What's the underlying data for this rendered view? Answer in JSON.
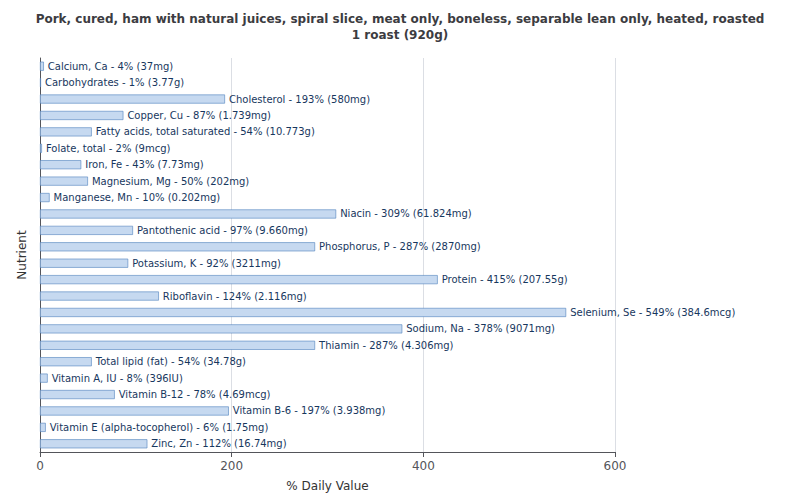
{
  "chart_data": {
    "type": "bar",
    "orientation": "horizontal",
    "title": "Pork, cured, ham with natural juices, spiral slice, meat only, boneless, separable lean only, heated, roasted\n1 roast (920g)",
    "xlabel": "% Daily Value",
    "ylabel": "Nutrient",
    "categories": [
      "Calcium, Ca - 4% (37mg)",
      "Carbohydrates - 1% (3.77g)",
      "Cholesterol - 193% (580mg)",
      "Copper, Cu - 87% (1.739mg)",
      "Fatty acids, total saturated - 54% (10.773g)",
      "Folate, total - 2% (9mcg)",
      "Iron, Fe - 43% (7.73mg)",
      "Magnesium, Mg - 50% (202mg)",
      "Manganese, Mn - 10% (0.202mg)",
      "Niacin - 309% (61.824mg)",
      "Pantothenic acid - 97% (9.660mg)",
      "Phosphorus, P - 287% (2870mg)",
      "Potassium, K - 92% (3211mg)",
      "Protein - 415% (207.55g)",
      "Riboflavin - 124% (2.116mg)",
      "Selenium, Se - 549% (384.6mcg)",
      "Sodium, Na - 378% (9071mg)",
      "Thiamin - 287% (4.306mg)",
      "Total lipid (fat) - 54% (34.78g)",
      "Vitamin A, IU - 8% (396IU)",
      "Vitamin B-12 - 78% (4.69mcg)",
      "Vitamin B-6 - 197% (3.938mg)",
      "Vitamin E (alpha-tocopherol) - 6% (1.75mg)",
      "Zinc, Zn - 112% (16.74mg)"
    ],
    "values": [
      4,
      1,
      193,
      87,
      54,
      2,
      43,
      50,
      10,
      309,
      97,
      287,
      92,
      415,
      124,
      549,
      378,
      287,
      54,
      8,
      78,
      197,
      6,
      112
    ],
    "color": "#c6d9f0",
    "xlim": [
      0,
      600
    ],
    "xticks": [
      0,
      200,
      400,
      600
    ],
    "grid": true,
    "tick_labels": "x"
  }
}
